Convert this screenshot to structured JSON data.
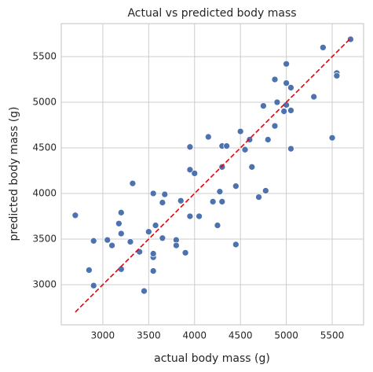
{
  "chart_data": {
    "type": "scatter",
    "title": "Actual vs predicted body mass",
    "x_label": "actual body mass (g)",
    "y_label": "predicted body mass (g)",
    "xlim": [
      2547,
      5842
    ],
    "ylim": [
      2560,
      5862
    ],
    "xticks": [
      3000,
      3500,
      4000,
      4500,
      5000,
      5500
    ],
    "yticks": [
      3000,
      3500,
      4000,
      4500,
      5000,
      5500
    ],
    "grid": true,
    "series": [
      {
        "color": "#4c72b0",
        "x": [
          2700,
          2850,
          2900,
          2900,
          3050,
          3100,
          3175,
          3200,
          3200,
          3200,
          3300,
          3325,
          3400,
          3450,
          3500,
          3550,
          3550,
          3550,
          3550,
          3575,
          3650,
          3650,
          3675,
          3800,
          3800,
          3850,
          3900,
          3950,
          3950,
          3950,
          4000,
          4050,
          4150,
          4200,
          4250,
          4275,
          4300,
          4300,
          4300,
          4350,
          4450,
          4450,
          4500,
          4550,
          4600,
          4625,
          4700,
          4750,
          4775,
          4800,
          4875,
          4875,
          4900,
          4975,
          5000,
          5000,
          5000,
          5050,
          5050,
          5050,
          5300,
          5400,
          5500,
          5550,
          5550,
          5700
        ],
        "values": [
          3760,
          3160,
          3480,
          2990,
          3490,
          3430,
          3670,
          3560,
          3170,
          3790,
          3470,
          4110,
          3360,
          2930,
          3580,
          3300,
          3150,
          3340,
          4000,
          3650,
          3900,
          3510,
          3990,
          3490,
          3430,
          3920,
          3350,
          4510,
          4260,
          3750,
          4220,
          3750,
          4620,
          3910,
          3650,
          4020,
          4290,
          4520,
          3910,
          4520,
          4080,
          3440,
          4680,
          4480,
          4590,
          4290,
          3960,
          4960,
          4030,
          4590,
          4740,
          5250,
          5000,
          4900,
          5210,
          4970,
          5420,
          5160,
          4910,
          4490,
          5060,
          5600,
          4610,
          5320,
          5290,
          5690
        ]
      }
    ],
    "reference_line": {
      "x": [
        2700,
        5700
      ],
      "values": [
        2700,
        5700
      ],
      "color": "#e8000b"
    }
  }
}
